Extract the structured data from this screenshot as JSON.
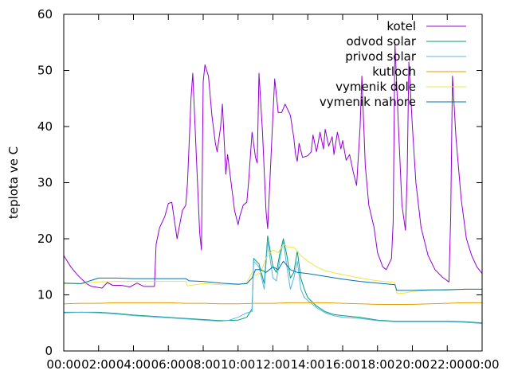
{
  "chart_data": {
    "type": "line",
    "title": "",
    "xlabel": "",
    "ylabel": "teplota ve C",
    "xlim": [
      0,
      24
    ],
    "ylim": [
      0,
      60
    ],
    "grid": false,
    "legend_position": "top-right",
    "xticks": [
      {
        "value": 0,
        "label": "00:00"
      },
      {
        "value": 2,
        "label": "02:00"
      },
      {
        "value": 4,
        "label": "04:00"
      },
      {
        "value": 6,
        "label": "06:00"
      },
      {
        "value": 8,
        "label": "08:00"
      },
      {
        "value": 10,
        "label": "10:00"
      },
      {
        "value": 12,
        "label": "12:00"
      },
      {
        "value": 14,
        "label": "14:00"
      },
      {
        "value": 16,
        "label": "16:00"
      },
      {
        "value": 18,
        "label": "18:00"
      },
      {
        "value": 20,
        "label": "20:00"
      },
      {
        "value": 22,
        "label": "22:00"
      },
      {
        "value": 24,
        "label": "00:00"
      }
    ],
    "yticks": [
      {
        "value": 0,
        "label": "0"
      },
      {
        "value": 10,
        "label": "10"
      },
      {
        "value": 20,
        "label": "20"
      },
      {
        "value": 30,
        "label": "30"
      },
      {
        "value": 40,
        "label": "40"
      },
      {
        "value": 50,
        "label": "50"
      },
      {
        "value": 60,
        "label": "60"
      }
    ],
    "series": [
      {
        "name": "kotel",
        "color": "#9400d3",
        "points": [
          [
            0,
            17
          ],
          [
            0.4,
            15
          ],
          [
            0.8,
            13.5
          ],
          [
            1.3,
            12
          ],
          [
            1.6,
            11.5
          ],
          [
            2.2,
            11.2
          ],
          [
            2.5,
            12.2
          ],
          [
            2.8,
            11.7
          ],
          [
            3.3,
            11.7
          ],
          [
            3.8,
            11.4
          ],
          [
            4.2,
            12.1
          ],
          [
            4.6,
            11.5
          ],
          [
            5.0,
            11.5
          ],
          [
            5.2,
            11.5
          ],
          [
            5.3,
            19
          ],
          [
            5.5,
            22
          ],
          [
            5.8,
            24
          ],
          [
            6.0,
            26.3
          ],
          [
            6.2,
            26.5
          ],
          [
            6.5,
            20
          ],
          [
            6.8,
            25
          ],
          [
            7.0,
            26
          ],
          [
            7.1,
            30
          ],
          [
            7.3,
            45
          ],
          [
            7.4,
            49.5
          ],
          [
            7.6,
            35
          ],
          [
            7.8,
            21
          ],
          [
            7.9,
            18
          ],
          [
            8.0,
            48
          ],
          [
            8.1,
            51
          ],
          [
            8.3,
            49
          ],
          [
            8.5,
            42
          ],
          [
            8.7,
            37
          ],
          [
            8.8,
            35.5
          ],
          [
            9.0,
            40
          ],
          [
            9.1,
            44
          ],
          [
            9.3,
            31.5
          ],
          [
            9.4,
            35
          ],
          [
            9.6,
            30
          ],
          [
            9.8,
            25
          ],
          [
            10.0,
            22.5
          ],
          [
            10.1,
            24
          ],
          [
            10.3,
            26
          ],
          [
            10.5,
            26.5
          ],
          [
            10.6,
            30
          ],
          [
            10.8,
            39
          ],
          [
            11.0,
            34.5
          ],
          [
            11.1,
            33.5
          ],
          [
            11.2,
            49.5
          ],
          [
            11.4,
            39
          ],
          [
            11.6,
            25
          ],
          [
            11.7,
            21.8
          ],
          [
            12.0,
            42
          ],
          [
            12.1,
            48.5
          ],
          [
            12.3,
            42.5
          ],
          [
            12.5,
            42.5
          ],
          [
            12.7,
            44
          ],
          [
            13.0,
            42
          ],
          [
            13.2,
            38
          ],
          [
            13.3,
            35
          ],
          [
            13.4,
            33.8
          ],
          [
            13.5,
            37
          ],
          [
            13.7,
            34.5
          ],
          [
            14.0,
            34.8
          ],
          [
            14.2,
            35.5
          ],
          [
            14.3,
            38.5
          ],
          [
            14.5,
            35.5
          ],
          [
            14.7,
            39
          ],
          [
            14.9,
            36
          ],
          [
            15.0,
            39.5
          ],
          [
            15.2,
            36.5
          ],
          [
            15.4,
            38.2
          ],
          [
            15.5,
            35
          ],
          [
            15.7,
            39
          ],
          [
            15.9,
            36
          ],
          [
            16.0,
            37.5
          ],
          [
            16.2,
            34
          ],
          [
            16.4,
            35
          ],
          [
            16.6,
            32
          ],
          [
            16.8,
            29.5
          ],
          [
            17.0,
            40
          ],
          [
            17.1,
            49
          ],
          [
            17.3,
            33
          ],
          [
            17.5,
            26
          ],
          [
            17.8,
            22
          ],
          [
            18.0,
            17.5
          ],
          [
            18.3,
            15
          ],
          [
            18.5,
            14.5
          ],
          [
            18.8,
            16.5
          ],
          [
            18.9,
            23
          ],
          [
            19.0,
            55
          ],
          [
            19.2,
            40
          ],
          [
            19.4,
            26
          ],
          [
            19.6,
            21.5
          ],
          [
            19.7,
            31
          ],
          [
            19.8,
            51.5
          ],
          [
            20.0,
            40
          ],
          [
            20.2,
            30
          ],
          [
            20.5,
            22
          ],
          [
            20.9,
            17
          ],
          [
            21.3,
            14.5
          ],
          [
            21.7,
            13.2
          ],
          [
            22.1,
            12.3
          ],
          [
            22.2,
            24
          ],
          [
            22.3,
            49
          ],
          [
            22.5,
            38
          ],
          [
            22.8,
            27
          ],
          [
            23.1,
            20
          ],
          [
            23.4,
            17
          ],
          [
            23.7,
            15
          ],
          [
            24.0,
            13.8
          ]
        ]
      },
      {
        "name": "odvod solar",
        "color": "#009e73",
        "points": [
          [
            0,
            6.9
          ],
          [
            1,
            6.9
          ],
          [
            2,
            6.9
          ],
          [
            3,
            6.7
          ],
          [
            4,
            6.4
          ],
          [
            5,
            6.2
          ],
          [
            6,
            6.0
          ],
          [
            7,
            5.8
          ],
          [
            8,
            5.6
          ],
          [
            9,
            5.4
          ],
          [
            10,
            5.5
          ],
          [
            10.5,
            6.0
          ],
          [
            10.8,
            7.5
          ],
          [
            10.9,
            16.5
          ],
          [
            11.2,
            15.5
          ],
          [
            11.5,
            12
          ],
          [
            11.7,
            20.5
          ],
          [
            12.0,
            15
          ],
          [
            12.2,
            14
          ],
          [
            12.4,
            17.5
          ],
          [
            12.6,
            20
          ],
          [
            12.8,
            17
          ],
          [
            13.0,
            13
          ],
          [
            13.2,
            14
          ],
          [
            13.4,
            17.8
          ],
          [
            13.6,
            13
          ],
          [
            13.8,
            11
          ],
          [
            14.0,
            9.5
          ],
          [
            14.5,
            8
          ],
          [
            15.0,
            7
          ],
          [
            15.5,
            6.5
          ],
          [
            16.0,
            6.3
          ],
          [
            17.0,
            6.0
          ],
          [
            18.0,
            5.5
          ],
          [
            19,
            5.3
          ],
          [
            20,
            5.3
          ],
          [
            21,
            5.3
          ],
          [
            22,
            5.3
          ],
          [
            23,
            5.2
          ],
          [
            24,
            5.0
          ]
        ]
      },
      {
        "name": "privod solar",
        "color": "#56b4e9",
        "points": [
          [
            0,
            6.8
          ],
          [
            1,
            6.9
          ],
          [
            2,
            6.8
          ],
          [
            3,
            6.6
          ],
          [
            4,
            6.3
          ],
          [
            5,
            6.1
          ],
          [
            6,
            5.9
          ],
          [
            7,
            5.7
          ],
          [
            8,
            5.5
          ],
          [
            9,
            5.3
          ],
          [
            9.5,
            5.5
          ],
          [
            10,
            6.0
          ],
          [
            10.5,
            6.8
          ],
          [
            10.8,
            7.0
          ],
          [
            10.9,
            16
          ],
          [
            11.2,
            15
          ],
          [
            11.5,
            11
          ],
          [
            11.7,
            19.5
          ],
          [
            12.0,
            13
          ],
          [
            12.2,
            12.5
          ],
          [
            12.4,
            16.5
          ],
          [
            12.6,
            19.5
          ],
          [
            12.8,
            15
          ],
          [
            13.0,
            11
          ],
          [
            13.2,
            13
          ],
          [
            13.4,
            16
          ],
          [
            13.6,
            11
          ],
          [
            13.8,
            9.5
          ],
          [
            14.2,
            8.5
          ],
          [
            14.6,
            7.5
          ],
          [
            15.0,
            6.8
          ],
          [
            15.5,
            6.3
          ],
          [
            16.0,
            6.0
          ],
          [
            17.0,
            5.8
          ],
          [
            18.0,
            5.4
          ],
          [
            19,
            5.2
          ],
          [
            20,
            5.2
          ],
          [
            21,
            5.2
          ],
          [
            22,
            5.2
          ],
          [
            23,
            5.1
          ],
          [
            24,
            4.9
          ]
        ]
      },
      {
        "name": "kutloch",
        "color": "#e69f00",
        "points": [
          [
            0,
            8.4
          ],
          [
            1,
            8.5
          ],
          [
            2,
            8.5
          ],
          [
            3,
            8.6
          ],
          [
            4,
            8.6
          ],
          [
            5,
            8.6
          ],
          [
            6,
            8.6
          ],
          [
            7,
            8.5
          ],
          [
            8,
            8.5
          ],
          [
            9,
            8.4
          ],
          [
            10,
            8.4
          ],
          [
            11,
            8.5
          ],
          [
            12,
            8.5
          ],
          [
            13,
            8.6
          ],
          [
            14,
            8.6
          ],
          [
            15,
            8.6
          ],
          [
            16,
            8.5
          ],
          [
            17,
            8.4
          ],
          [
            18,
            8.3
          ],
          [
            19,
            8.3
          ],
          [
            20,
            8.3
          ],
          [
            21,
            8.4
          ],
          [
            22,
            8.5
          ],
          [
            23,
            8.6
          ],
          [
            24,
            8.6
          ]
        ]
      },
      {
        "name": "vymenik dole",
        "color": "#f0e442",
        "points": [
          [
            0,
            12
          ],
          [
            1,
            12
          ],
          [
            2,
            12.3
          ],
          [
            3,
            12.4
          ],
          [
            4,
            12.4
          ],
          [
            5,
            12.4
          ],
          [
            6,
            12.4
          ],
          [
            7,
            12.4
          ],
          [
            7.1,
            11.6
          ],
          [
            7.5,
            11.8
          ],
          [
            8,
            12
          ],
          [
            9,
            11.8
          ],
          [
            10,
            11.8
          ],
          [
            10.5,
            12.2
          ],
          [
            10.8,
            14
          ],
          [
            11.0,
            13.5
          ],
          [
            11.3,
            14
          ],
          [
            11.6,
            16.5
          ],
          [
            12.0,
            18
          ],
          [
            12.3,
            17.5
          ],
          [
            12.6,
            19
          ],
          [
            12.9,
            18.5
          ],
          [
            13.2,
            18.5
          ],
          [
            13.6,
            17
          ],
          [
            14.0,
            16
          ],
          [
            14.5,
            15
          ],
          [
            15,
            14.3
          ],
          [
            16,
            13.6
          ],
          [
            17,
            13
          ],
          [
            18,
            12.5
          ],
          [
            19,
            12.2
          ],
          [
            19.1,
            10.3
          ],
          [
            19.5,
            10.3
          ],
          [
            20,
            10.6
          ],
          [
            21,
            10.8
          ],
          [
            22,
            11
          ],
          [
            23,
            11
          ],
          [
            24,
            11
          ]
        ]
      },
      {
        "name": "vymenik nahore",
        "color": "#0072b2",
        "points": [
          [
            0,
            12.1
          ],
          [
            1,
            12
          ],
          [
            1.5,
            12.5
          ],
          [
            2,
            13
          ],
          [
            3,
            13
          ],
          [
            4,
            12.9
          ],
          [
            5,
            12.9
          ],
          [
            6,
            12.9
          ],
          [
            7,
            12.9
          ],
          [
            7.2,
            12.5
          ],
          [
            8,
            12.4
          ],
          [
            9,
            12.1
          ],
          [
            10,
            11.9
          ],
          [
            10.5,
            12
          ],
          [
            10.8,
            13
          ],
          [
            11.0,
            14.5
          ],
          [
            11.3,
            14.5
          ],
          [
            11.6,
            14
          ],
          [
            12.0,
            15
          ],
          [
            12.3,
            14.5
          ],
          [
            12.6,
            16
          ],
          [
            13.0,
            14.5
          ],
          [
            13.4,
            14
          ],
          [
            14,
            13.8
          ],
          [
            15,
            13.3
          ],
          [
            16,
            12.8
          ],
          [
            17,
            12.4
          ],
          [
            18,
            12.1
          ],
          [
            19,
            11.8
          ],
          [
            19.1,
            10.8
          ],
          [
            19.5,
            10.8
          ],
          [
            20,
            10.8
          ],
          [
            21,
            10.9
          ],
          [
            22,
            10.9
          ],
          [
            23,
            11
          ],
          [
            24,
            11
          ]
        ]
      }
    ]
  }
}
